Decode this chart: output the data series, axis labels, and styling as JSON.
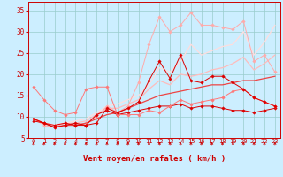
{
  "xlabel": "Vent moyen/en rafales ( km/h )",
  "xlim": [
    -0.5,
    23.5
  ],
  "ylim": [
    5,
    37
  ],
  "yticks": [
    5,
    10,
    15,
    20,
    25,
    30,
    35
  ],
  "xticks": [
    0,
    1,
    2,
    3,
    4,
    5,
    6,
    7,
    8,
    9,
    10,
    11,
    12,
    13,
    14,
    15,
    16,
    17,
    18,
    19,
    20,
    21,
    22,
    23
  ],
  "bg_color": "#cceeff",
  "grid_color": "#99cccc",
  "series": [
    {
      "x": [
        0,
        1,
        2,
        3,
        4,
        5,
        6,
        7,
        8,
        9,
        10,
        11,
        12,
        13,
        14,
        15,
        16,
        17,
        18,
        19,
        20,
        21,
        22,
        23
      ],
      "y": [
        9.5,
        8.5,
        7.5,
        8.0,
        8.5,
        8.0,
        8.5,
        12.0,
        11.0,
        12.0,
        13.5,
        18.5,
        23.0,
        19.0,
        24.5,
        18.5,
        18.0,
        19.5,
        19.5,
        18.0,
        16.5,
        14.5,
        13.5,
        12.5
      ],
      "color": "#dd0000",
      "marker": "D",
      "markersize": 1.8,
      "linewidth": 0.7,
      "zorder": 5
    },
    {
      "x": [
        0,
        1,
        2,
        3,
        4,
        5,
        6,
        7,
        8,
        9,
        10,
        11,
        12,
        13,
        14,
        15,
        16,
        17,
        18,
        19,
        20,
        21,
        22,
        23
      ],
      "y": [
        9.0,
        8.5,
        8.0,
        8.5,
        8.0,
        8.0,
        10.5,
        11.5,
        10.5,
        11.0,
        11.5,
        12.0,
        12.5,
        12.5,
        13.0,
        12.0,
        12.5,
        12.5,
        12.0,
        11.5,
        11.5,
        11.0,
        11.5,
        12.0
      ],
      "color": "#dd0000",
      "marker": "D",
      "markersize": 1.8,
      "linewidth": 0.7,
      "zorder": 4
    },
    {
      "x": [
        0,
        1,
        2,
        3,
        4,
        5,
        6,
        7,
        8,
        9,
        10,
        11,
        12,
        13,
        14,
        15,
        16,
        17,
        18,
        19,
        20,
        21,
        22,
        23
      ],
      "y": [
        17.0,
        14.0,
        11.5,
        10.5,
        11.0,
        16.5,
        17.0,
        17.0,
        10.5,
        10.5,
        10.5,
        11.5,
        11.0,
        12.5,
        14.0,
        13.0,
        13.5,
        14.0,
        14.5,
        16.0,
        16.5,
        14.5,
        13.5,
        12.5
      ],
      "color": "#ff7777",
      "marker": "D",
      "markersize": 1.8,
      "linewidth": 0.7,
      "zorder": 4
    },
    {
      "x": [
        0,
        1,
        2,
        3,
        4,
        5,
        6,
        7,
        8,
        9,
        10,
        11,
        12,
        13,
        14,
        15,
        16,
        17,
        18,
        19,
        20,
        21,
        22,
        23
      ],
      "y": [
        9.5,
        8.0,
        7.5,
        8.5,
        8.0,
        8.5,
        10.0,
        12.5,
        11.0,
        12.5,
        18.0,
        27.0,
        33.5,
        30.0,
        31.5,
        34.5,
        31.5,
        31.5,
        31.0,
        30.5,
        32.5,
        23.0,
        24.5,
        20.5
      ],
      "color": "#ffaaaa",
      "marker": "D",
      "markersize": 1.8,
      "linewidth": 0.7,
      "zorder": 3
    },
    {
      "x": [
        0,
        1,
        2,
        3,
        4,
        5,
        6,
        7,
        8,
        9,
        10,
        11,
        12,
        13,
        14,
        15,
        16,
        17,
        18,
        19,
        20,
        21,
        22,
        23
      ],
      "y": [
        9.5,
        8.5,
        7.5,
        8.0,
        8.0,
        8.5,
        9.5,
        10.5,
        11.0,
        12.0,
        13.0,
        14.0,
        15.0,
        15.5,
        16.0,
        16.5,
        17.0,
        17.5,
        17.5,
        18.0,
        18.5,
        18.5,
        19.0,
        19.5
      ],
      "color": "#ee4444",
      "marker": null,
      "markersize": 0,
      "linewidth": 0.9,
      "zorder": 3
    },
    {
      "x": [
        0,
        1,
        2,
        3,
        4,
        5,
        6,
        7,
        8,
        9,
        10,
        11,
        12,
        13,
        14,
        15,
        16,
        17,
        18,
        19,
        20,
        21,
        22,
        23
      ],
      "y": [
        9.5,
        8.5,
        8.0,
        8.5,
        8.5,
        9.0,
        10.5,
        12.0,
        12.0,
        13.0,
        14.0,
        16.5,
        18.5,
        17.5,
        20.0,
        19.5,
        20.0,
        21.0,
        21.5,
        22.5,
        24.0,
        21.0,
        22.5,
        24.5
      ],
      "color": "#ffbbbb",
      "marker": null,
      "markersize": 0,
      "linewidth": 0.9,
      "zorder": 2
    },
    {
      "x": [
        0,
        1,
        2,
        3,
        4,
        5,
        6,
        7,
        8,
        9,
        10,
        11,
        12,
        13,
        14,
        15,
        16,
        17,
        18,
        19,
        20,
        21,
        22,
        23
      ],
      "y": [
        9.5,
        8.5,
        8.0,
        8.5,
        9.0,
        9.5,
        11.0,
        12.5,
        13.0,
        14.0,
        15.0,
        17.5,
        21.5,
        20.5,
        23.0,
        27.0,
        24.5,
        25.5,
        26.5,
        27.0,
        30.0,
        24.5,
        27.5,
        31.5
      ],
      "color": "#ffdddd",
      "marker": null,
      "markersize": 0,
      "linewidth": 0.9,
      "zorder": 2
    }
  ],
  "tick_color": "#cc0000",
  "label_color": "#cc0000",
  "xlabel_fontsize": 6.5,
  "tick_fontsize": 5.0,
  "ytick_fontsize": 5.5
}
